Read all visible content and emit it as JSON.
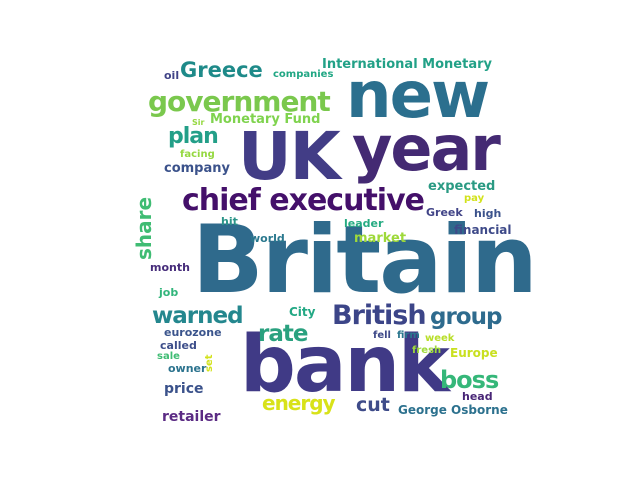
{
  "cloud": {
    "words": [
      {
        "text": "Britain",
        "color": "#2f6a8c"
      },
      {
        "text": "bank",
        "color": "#403a86"
      },
      {
        "text": "UK",
        "color": "#423d86"
      },
      {
        "text": "year",
        "color": "#442a73"
      },
      {
        "text": "new",
        "color": "#2b6f8e"
      },
      {
        "text": "chief executive",
        "color": "#44106a"
      },
      {
        "text": "government",
        "color": "#7ac84d"
      },
      {
        "text": "Greece",
        "color": "#1e8a89"
      },
      {
        "text": "British",
        "color": "#3c4588"
      },
      {
        "text": "group",
        "color": "#2e6b8e"
      },
      {
        "text": "warned",
        "color": "#24878e"
      },
      {
        "text": "rate",
        "color": "#2aa17f"
      },
      {
        "text": "boss",
        "color": "#35b779"
      },
      {
        "text": "energy",
        "color": "#d8e219"
      },
      {
        "text": "cut",
        "color": "#3e4b89"
      },
      {
        "text": "plan",
        "color": "#239f88"
      },
      {
        "text": "share",
        "color": "#3fbc73"
      },
      {
        "text": "International Monetary",
        "color": "#22a187"
      },
      {
        "text": "Monetary Fund",
        "color": "#7fd34e"
      },
      {
        "text": "company",
        "color": "#3b528b"
      },
      {
        "text": "expected",
        "color": "#2a9a83"
      },
      {
        "text": "price",
        "color": "#3b528b"
      },
      {
        "text": "retailer",
        "color": "#5b2b84"
      },
      {
        "text": "George Osborne",
        "color": "#2c718e"
      },
      {
        "text": "Europe",
        "color": "#c9e020"
      },
      {
        "text": "market",
        "color": "#9ed93a"
      },
      {
        "text": "financial",
        "color": "#3e4a89"
      },
      {
        "text": "companies",
        "color": "#21a784"
      },
      {
        "text": "facing",
        "color": "#95d840"
      },
      {
        "text": "oil",
        "color": "#404387"
      },
      {
        "text": "Sir",
        "color": "#95d840"
      },
      {
        "text": "hit",
        "color": "#2b9488"
      },
      {
        "text": "world",
        "color": "#2a788e"
      },
      {
        "text": "leader",
        "color": "#25ab82"
      },
      {
        "text": "Greek",
        "color": "#414487"
      },
      {
        "text": "high",
        "color": "#3b528b"
      },
      {
        "text": "pay",
        "color": "#d2e21b"
      },
      {
        "text": "month",
        "color": "#472d7b"
      },
      {
        "text": "job",
        "color": "#31b57b"
      },
      {
        "text": "City",
        "color": "#22a884"
      },
      {
        "text": "eurozone",
        "color": "#3a548c"
      },
      {
        "text": "called",
        "color": "#3d4e8a"
      },
      {
        "text": "fell",
        "color": "#3e4989"
      },
      {
        "text": "firm",
        "color": "#2a768e"
      },
      {
        "text": "week",
        "color": "#b8de29"
      },
      {
        "text": "fresh",
        "color": "#9fda3a"
      },
      {
        "text": "sale",
        "color": "#3fbc73"
      },
      {
        "text": "owner",
        "color": "#2c738e"
      },
      {
        "text": "set",
        "color": "#d2e21b"
      },
      {
        "text": "head",
        "color": "#482576"
      }
    ]
  }
}
